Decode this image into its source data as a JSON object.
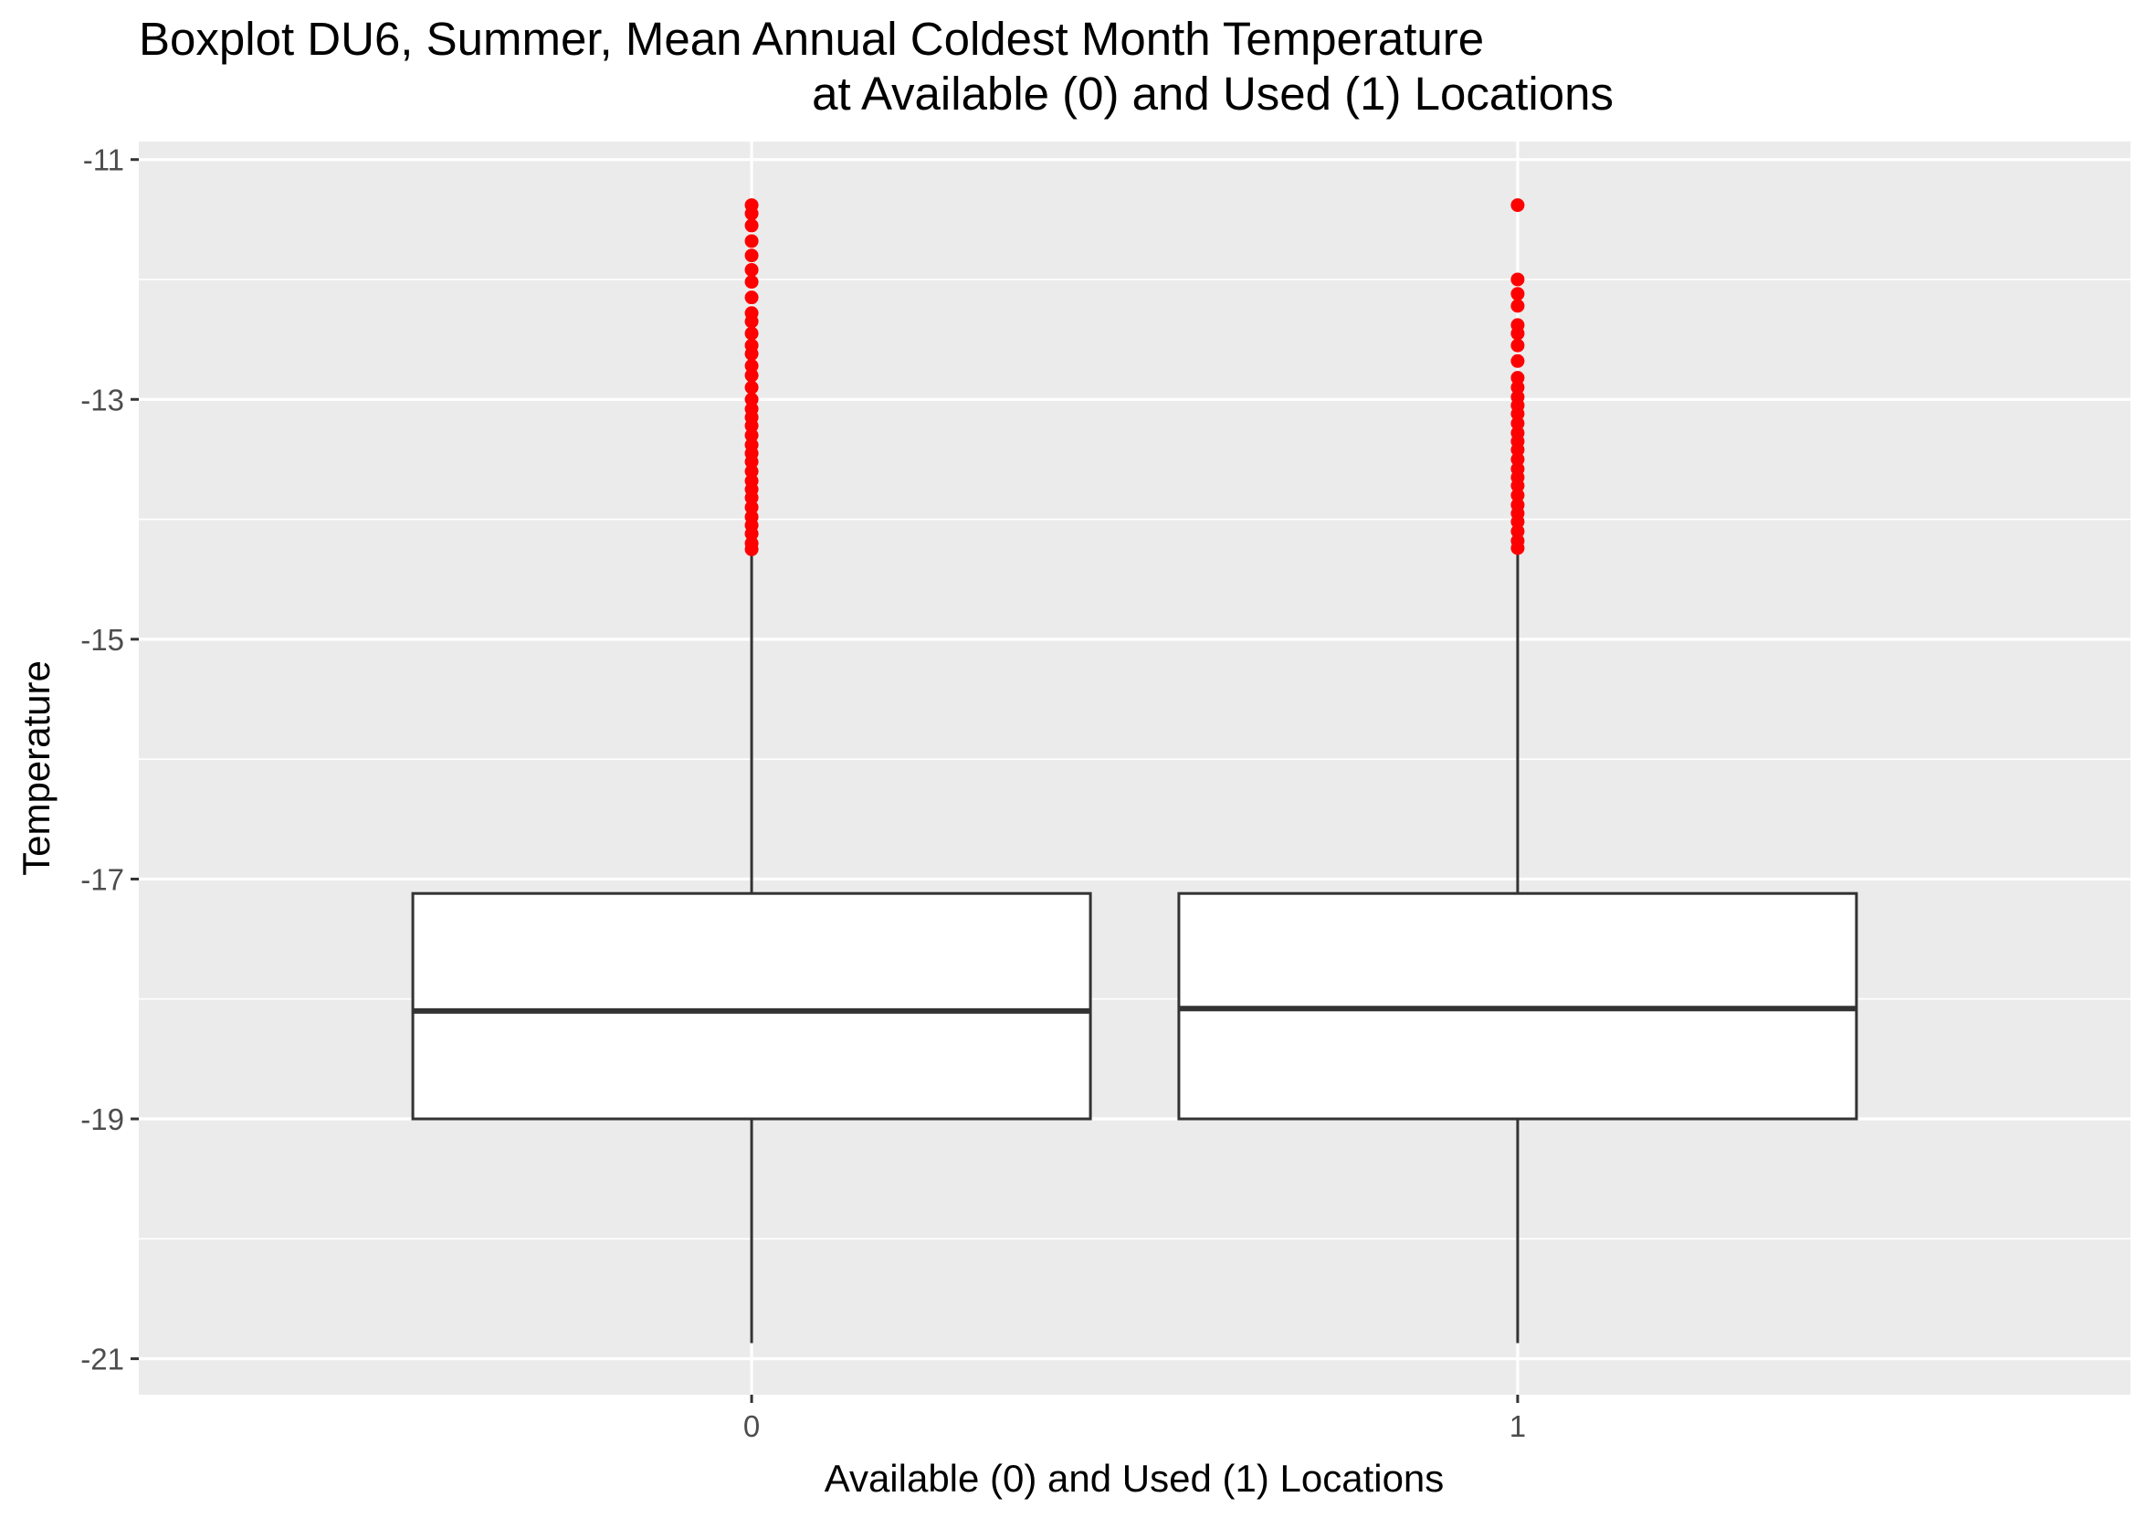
{
  "chart_data": {
    "type": "boxplot",
    "title": "Boxplot DU6, Summer, Mean Annual Coldest Month Temperature",
    "subtitle": "at Available (0) and Used (1) Locations",
    "xlabel": "Available (0) and Used (1) Locations",
    "ylabel": "Temperature",
    "ylim": [
      -21.3,
      -10.85
    ],
    "yticks": [
      -11,
      -13,
      -15,
      -17,
      -19,
      -21
    ],
    "ytick_labels": [
      "-11",
      "-13",
      "-15",
      "-17",
      "-19",
      "-21"
    ],
    "categories": [
      "0",
      "1"
    ],
    "grid": true,
    "panel_background": "#ebebeb",
    "outlier_color": "#ff0000",
    "box_fill": "#ffffff",
    "box_stroke": "#333333",
    "boxes": [
      {
        "category": "0",
        "whisker_low": -20.87,
        "q1": -19.0,
        "median": -18.1,
        "q3": -17.12,
        "whisker_high": -14.27,
        "outliers": [
          -11.38,
          -11.45,
          -11.55,
          -11.68,
          -11.8,
          -11.92,
          -12.02,
          -12.15,
          -12.28,
          -12.35,
          -12.45,
          -12.55,
          -12.62,
          -12.72,
          -12.8,
          -12.9,
          -13.0,
          -13.08,
          -13.15,
          -13.22,
          -13.3,
          -13.38,
          -13.45,
          -13.52,
          -13.6,
          -13.68,
          -13.75,
          -13.82,
          -13.9,
          -13.98,
          -14.05,
          -14.12,
          -14.2,
          -14.25
        ]
      },
      {
        "category": "1",
        "whisker_low": -20.87,
        "q1": -19.0,
        "median": -18.08,
        "q3": -17.12,
        "whisker_high": -14.27,
        "outliers": [
          -11.38,
          -12.0,
          -12.12,
          -12.22,
          -12.38,
          -12.45,
          -12.55,
          -12.68,
          -12.82,
          -12.9,
          -12.98,
          -13.05,
          -13.12,
          -13.2,
          -13.28,
          -13.35,
          -13.42,
          -13.5,
          -13.58,
          -13.65,
          -13.72,
          -13.8,
          -13.88,
          -13.95,
          -14.02,
          -14.1,
          -14.18,
          -14.24
        ]
      }
    ]
  }
}
